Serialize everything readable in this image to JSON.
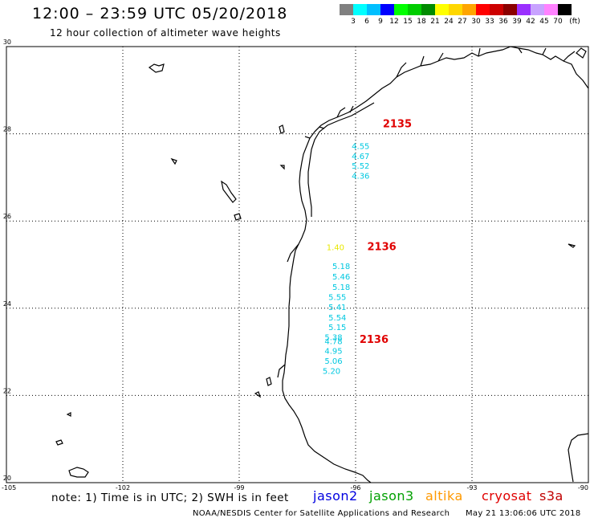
{
  "header": {
    "title": "12:00 – 23:59 UTC 05/20/2018",
    "subtitle": "12 hour collection of altimeter wave heights"
  },
  "colorbar": {
    "unit_label": "(ft)",
    "ticks": [
      "3",
      "6",
      "9",
      "12",
      "15",
      "18",
      "21",
      "24",
      "27",
      "30",
      "33",
      "36",
      "39",
      "42",
      "45",
      "70"
    ],
    "colors": [
      "#808080",
      "#00ffff",
      "#00bfff",
      "#0000ff",
      "#00ff00",
      "#00cd00",
      "#008b00",
      "#ffff00",
      "#ffd700",
      "#ffa500",
      "#ff0000",
      "#cd0000",
      "#8b0000",
      "#9b30ff",
      "#c8a2ff",
      "#ff82ff",
      "#000000"
    ]
  },
  "map": {
    "lat_labels": [
      "30",
      "28",
      "26",
      "24",
      "22",
      "20"
    ],
    "lon_labels": [
      "-105",
      "-102",
      "-99",
      "-96",
      "-93",
      "-90"
    ],
    "lat_range": [
      20,
      30
    ],
    "lon_range": [
      -105,
      -90
    ],
    "grid": "dotted"
  },
  "observations": [
    {
      "text": "2135",
      "satellite": "cryosat",
      "color": "#e00000",
      "lon": -95.3,
      "lat": 28.15,
      "size": "large"
    },
    {
      "text": "4.55",
      "satellite": "jason2",
      "color": "#00c8e0",
      "lon": -96.1,
      "lat": 27.65,
      "size": "small"
    },
    {
      "text": "4.67",
      "satellite": "jason2",
      "color": "#00c8e0",
      "lon": -96.1,
      "lat": 27.42,
      "size": "small"
    },
    {
      "text": "5.52",
      "satellite": "jason2",
      "color": "#00c8e0",
      "lon": -96.1,
      "lat": 27.2,
      "size": "small"
    },
    {
      "text": "4.36",
      "satellite": "jason2",
      "color": "#00c8e0",
      "lon": -96.1,
      "lat": 26.97,
      "size": "small"
    },
    {
      "text": "1.40",
      "satellite": "altika",
      "color": "#e8e800",
      "lon": -96.75,
      "lat": 25.33,
      "size": "small"
    },
    {
      "text": "2136",
      "satellite": "cryosat",
      "color": "#e00000",
      "lon": -95.7,
      "lat": 25.33,
      "size": "large"
    },
    {
      "text": "5.18",
      "satellite": "jason2",
      "color": "#00c8e0",
      "lon": -96.6,
      "lat": 24.9,
      "size": "small"
    },
    {
      "text": "5.46",
      "satellite": "jason2",
      "color": "#00c8e0",
      "lon": -96.6,
      "lat": 24.66,
      "size": "small"
    },
    {
      "text": "5.18",
      "satellite": "jason2",
      "color": "#00c8e0",
      "lon": -96.6,
      "lat": 24.42,
      "size": "small"
    },
    {
      "text": "5.55",
      "satellite": "jason2",
      "color": "#00c8e0",
      "lon": -96.7,
      "lat": 24.19,
      "size": "small"
    },
    {
      "text": "5.41",
      "satellite": "jason2",
      "color": "#00c8e0",
      "lon": -96.7,
      "lat": 23.96,
      "size": "small"
    },
    {
      "text": "5.54",
      "satellite": "jason2",
      "color": "#00c8e0",
      "lon": -96.7,
      "lat": 23.72,
      "size": "small"
    },
    {
      "text": "5.15",
      "satellite": "jason2",
      "color": "#00c8e0",
      "lon": -96.7,
      "lat": 23.5,
      "size": "small"
    },
    {
      "text": "5.38",
      "satellite": "jason2",
      "color": "#00c8e0",
      "lon": -96.8,
      "lat": 23.27,
      "size": "small"
    },
    {
      "text": "4.78",
      "satellite": "jason2",
      "color": "#00c8e0",
      "lon": -96.8,
      "lat": 23.18,
      "size": "small"
    },
    {
      "text": "2136",
      "satellite": "cryosat",
      "color": "#e00000",
      "lon": -95.9,
      "lat": 23.2,
      "size": "large"
    },
    {
      "text": "4.95",
      "satellite": "jason2",
      "color": "#00c8e0",
      "lon": -96.8,
      "lat": 22.96,
      "size": "small"
    },
    {
      "text": "5.06",
      "satellite": "jason2",
      "color": "#00c8e0",
      "lon": -96.8,
      "lat": 22.73,
      "size": "small"
    },
    {
      "text": "5.20",
      "satellite": "jason2",
      "color": "#00c8e0",
      "lon": -96.85,
      "lat": 22.5,
      "size": "small"
    }
  ],
  "footer": {
    "note": "note: 1) Time is in UTC; 2) SWH is in feet",
    "legend": [
      {
        "label": "jason2",
        "color": "#0000e0"
      },
      {
        "label": "jason3",
        "color": "#00a000"
      },
      {
        "label": "altika",
        "color": "#ff9900"
      },
      {
        "label": "cryosat",
        "color": "#e00000"
      },
      {
        "label": "s3a",
        "color": "#c00000"
      }
    ],
    "credit": "NOAA/NESDIS Center for Satellite Applications and Research",
    "timestamp": "May 21 13:06:06 UTC 2018"
  }
}
